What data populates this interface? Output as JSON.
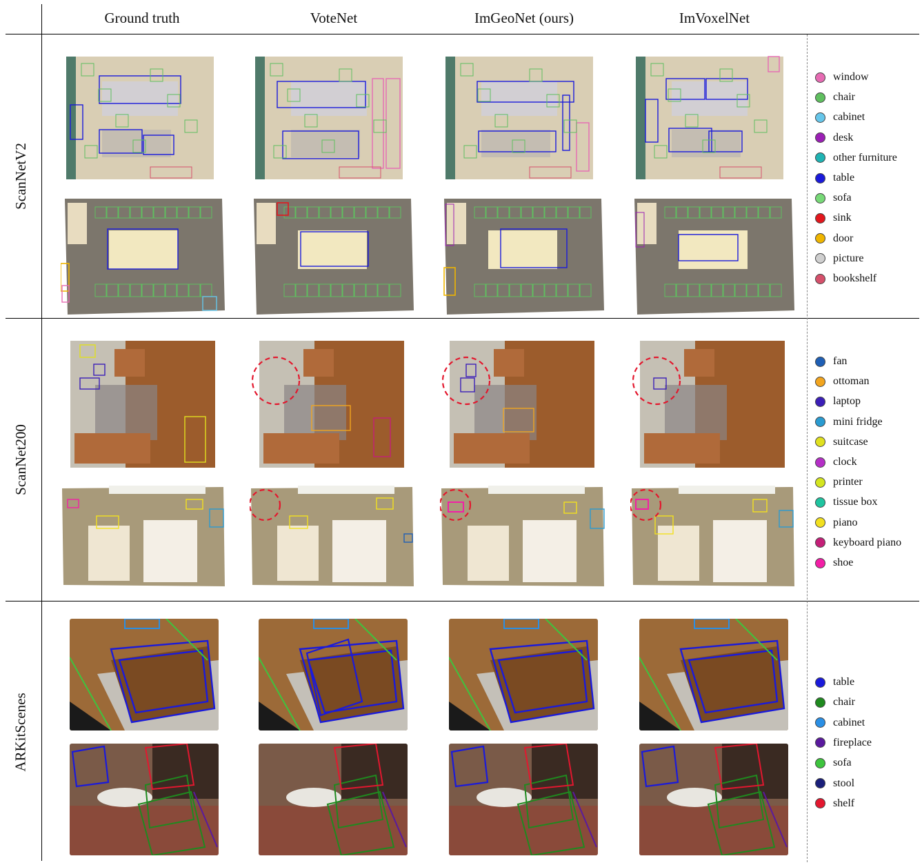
{
  "columns": [
    "Ground truth",
    "VoteNet",
    "ImGeoNet (ours)",
    "ImVoxelNet"
  ],
  "rows": [
    "ScanNetV2",
    "ScanNet200",
    "ARKitScenes"
  ],
  "legends": {
    "scannetv2": [
      {
        "label": "window",
        "color": "#e66bb3"
      },
      {
        "label": "chair",
        "color": "#5fbf5f"
      },
      {
        "label": "cabinet",
        "color": "#66c6ea"
      },
      {
        "label": "desk",
        "color": "#9b1fb5"
      },
      {
        "label": "other furniture",
        "color": "#1fb3b3"
      },
      {
        "label": "table",
        "color": "#1a1adb"
      },
      {
        "label": "sofa",
        "color": "#77d977"
      },
      {
        "label": "sink",
        "color": "#e3171d"
      },
      {
        "label": "door",
        "color": "#efb500"
      },
      {
        "label": "picture",
        "color": "#cfcfcf"
      },
      {
        "label": "bookshelf",
        "color": "#d6506b"
      }
    ],
    "scannet200": [
      {
        "label": "fan",
        "color": "#1f5fb5"
      },
      {
        "label": "ottoman",
        "color": "#f2a51f"
      },
      {
        "label": "laptop",
        "color": "#3b1fb8"
      },
      {
        "label": "mini fridge",
        "color": "#2a9bd1"
      },
      {
        "label": "suitcase",
        "color": "#e0e01f"
      },
      {
        "label": "clock",
        "color": "#b52fc7"
      },
      {
        "label": "printer",
        "color": "#d4e51f"
      },
      {
        "label": "tissue box",
        "color": "#1fc4a0"
      },
      {
        "label": "piano",
        "color": "#f2e01f"
      },
      {
        "label": "keyboard piano",
        "color": "#c41f78"
      },
      {
        "label": "shoe",
        "color": "#f21fa6"
      }
    ],
    "arkitscenes": [
      {
        "label": "table",
        "color": "#1a1adb"
      },
      {
        "label": "chair",
        "color": "#1f8a1f"
      },
      {
        "label": "cabinet",
        "color": "#2a8fe5"
      },
      {
        "label": "fireplace",
        "color": "#5a1a9e"
      },
      {
        "label": "sofa",
        "color": "#3ec43e"
      },
      {
        "label": "stool",
        "color": "#1a1f7a"
      },
      {
        "label": "shelf",
        "color": "#e3172f"
      }
    ]
  }
}
